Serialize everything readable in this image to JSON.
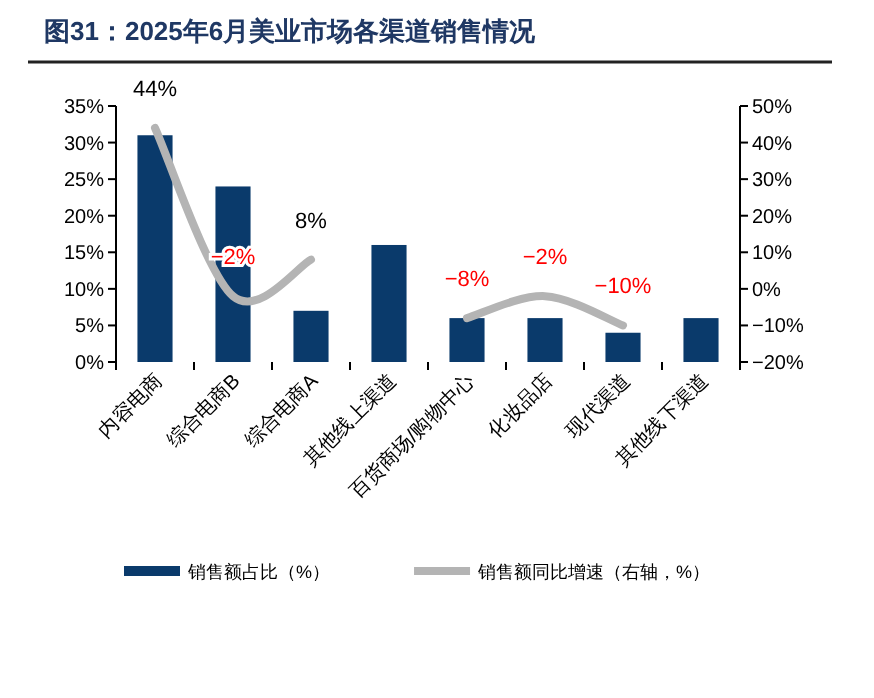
{
  "chart_data": {
    "type": "bar",
    "title": "图31：2025年6月美业市场各渠道销售情况",
    "categories": [
      "内容电商",
      "综合电商B",
      "综合电商A",
      "其他线上渠道",
      "百货商场/购物中心",
      "化妆品店",
      "现代渠道",
      "其他线下渠道"
    ],
    "series": [
      {
        "name": "销售额占比（%）",
        "color": "#0a3a6b",
        "values": [
          31,
          24,
          7,
          16,
          6,
          6,
          4,
          6
        ]
      },
      {
        "name": "销售额同比增速（右轴，%）",
        "type": "line",
        "axis": "y2",
        "color": "#b4b4b4",
        "values": [
          44,
          -2,
          8,
          null,
          -8,
          -2,
          -10,
          null
        ],
        "value_labels": [
          "44%",
          "−2%",
          "8%",
          null,
          "−8%",
          "−2%",
          "−10%",
          null
        ]
      }
    ],
    "ylim": [
      0,
      35
    ],
    "yticks": [
      {
        "value": 0,
        "label": "0%"
      },
      {
        "value": 5,
        "label": "5%"
      },
      {
        "value": 10,
        "label": "10%"
      },
      {
        "value": 15,
        "label": "15%"
      },
      {
        "value": 20,
        "label": "20%"
      },
      {
        "value": 25,
        "label": "25%"
      },
      {
        "value": 30,
        "label": "30%"
      },
      {
        "value": 35,
        "label": "35%"
      }
    ],
    "y2lim": [
      -20,
      50
    ],
    "y2ticks": [
      {
        "value": -20,
        "label": "−20%"
      },
      {
        "value": -10,
        "label": "−10%"
      },
      {
        "value": 0,
        "label": "0%"
      },
      {
        "value": 10,
        "label": "10%"
      },
      {
        "value": 20,
        "label": "20%"
      },
      {
        "value": 30,
        "label": "30%"
      },
      {
        "value": 40,
        "label": "40%"
      },
      {
        "value": 50,
        "label": "50%"
      }
    ],
    "legend": "bottom"
  }
}
